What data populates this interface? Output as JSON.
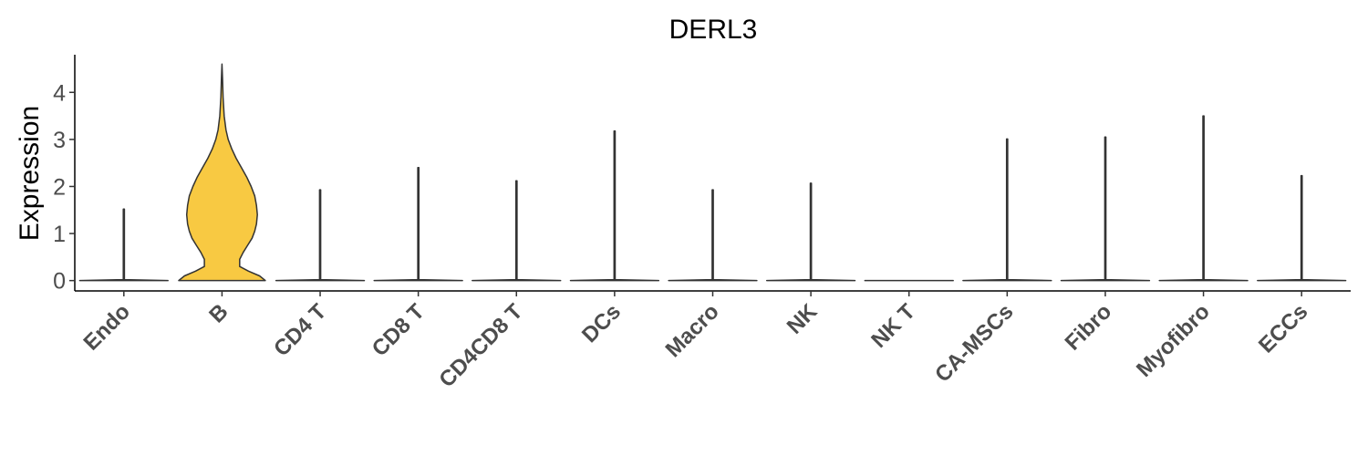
{
  "chart_data": {
    "type": "violin",
    "title": "DERL3",
    "xlabel": "",
    "ylabel": "Expression",
    "ylim": [
      -0.22,
      4.8
    ],
    "yticks": [
      0,
      1,
      2,
      3,
      4
    ],
    "grid": false,
    "legend": "none",
    "categories": [
      "Endo",
      "B",
      "CD4 T",
      "CD8 T",
      "CD4CD8 T",
      "DCs",
      "Macro",
      "NK",
      "NK T",
      "CA-MSCs",
      "Fibro",
      "Myofibro",
      "ECCs"
    ],
    "fill_colors": [
      "#ffffff",
      "#F8C942",
      "#ffffff",
      "#ffffff",
      "#ffffff",
      "#ffffff",
      "#ffffff",
      "#ffffff",
      "#ffffff",
      "#ffffff",
      "#ffffff",
      "#ffffff",
      "#ffffff"
    ],
    "max_values": [
      1.52,
      4.6,
      1.93,
      2.4,
      2.12,
      3.18,
      1.93,
      2.07,
      0,
      3.01,
      3.05,
      3.5,
      2.23
    ],
    "density_profiles": [
      null,
      {
        "y": [
          0,
          0.1,
          0.2,
          0.3,
          0.45,
          0.6,
          0.75,
          0.9,
          1.05,
          1.2,
          1.4,
          1.6,
          1.8,
          2.0,
          2.2,
          2.4,
          2.6,
          2.8,
          3.0,
          3.2,
          3.5,
          3.9,
          4.3,
          4.6
        ],
        "half_width": [
          0.98,
          0.85,
          0.6,
          0.4,
          0.4,
          0.48,
          0.58,
          0.68,
          0.74,
          0.78,
          0.8,
          0.78,
          0.74,
          0.66,
          0.56,
          0.44,
          0.32,
          0.22,
          0.14,
          0.09,
          0.05,
          0.025,
          0.012,
          0
        ]
      },
      null,
      null,
      null,
      null,
      null,
      null,
      null,
      null,
      null,
      null,
      null
    ]
  }
}
